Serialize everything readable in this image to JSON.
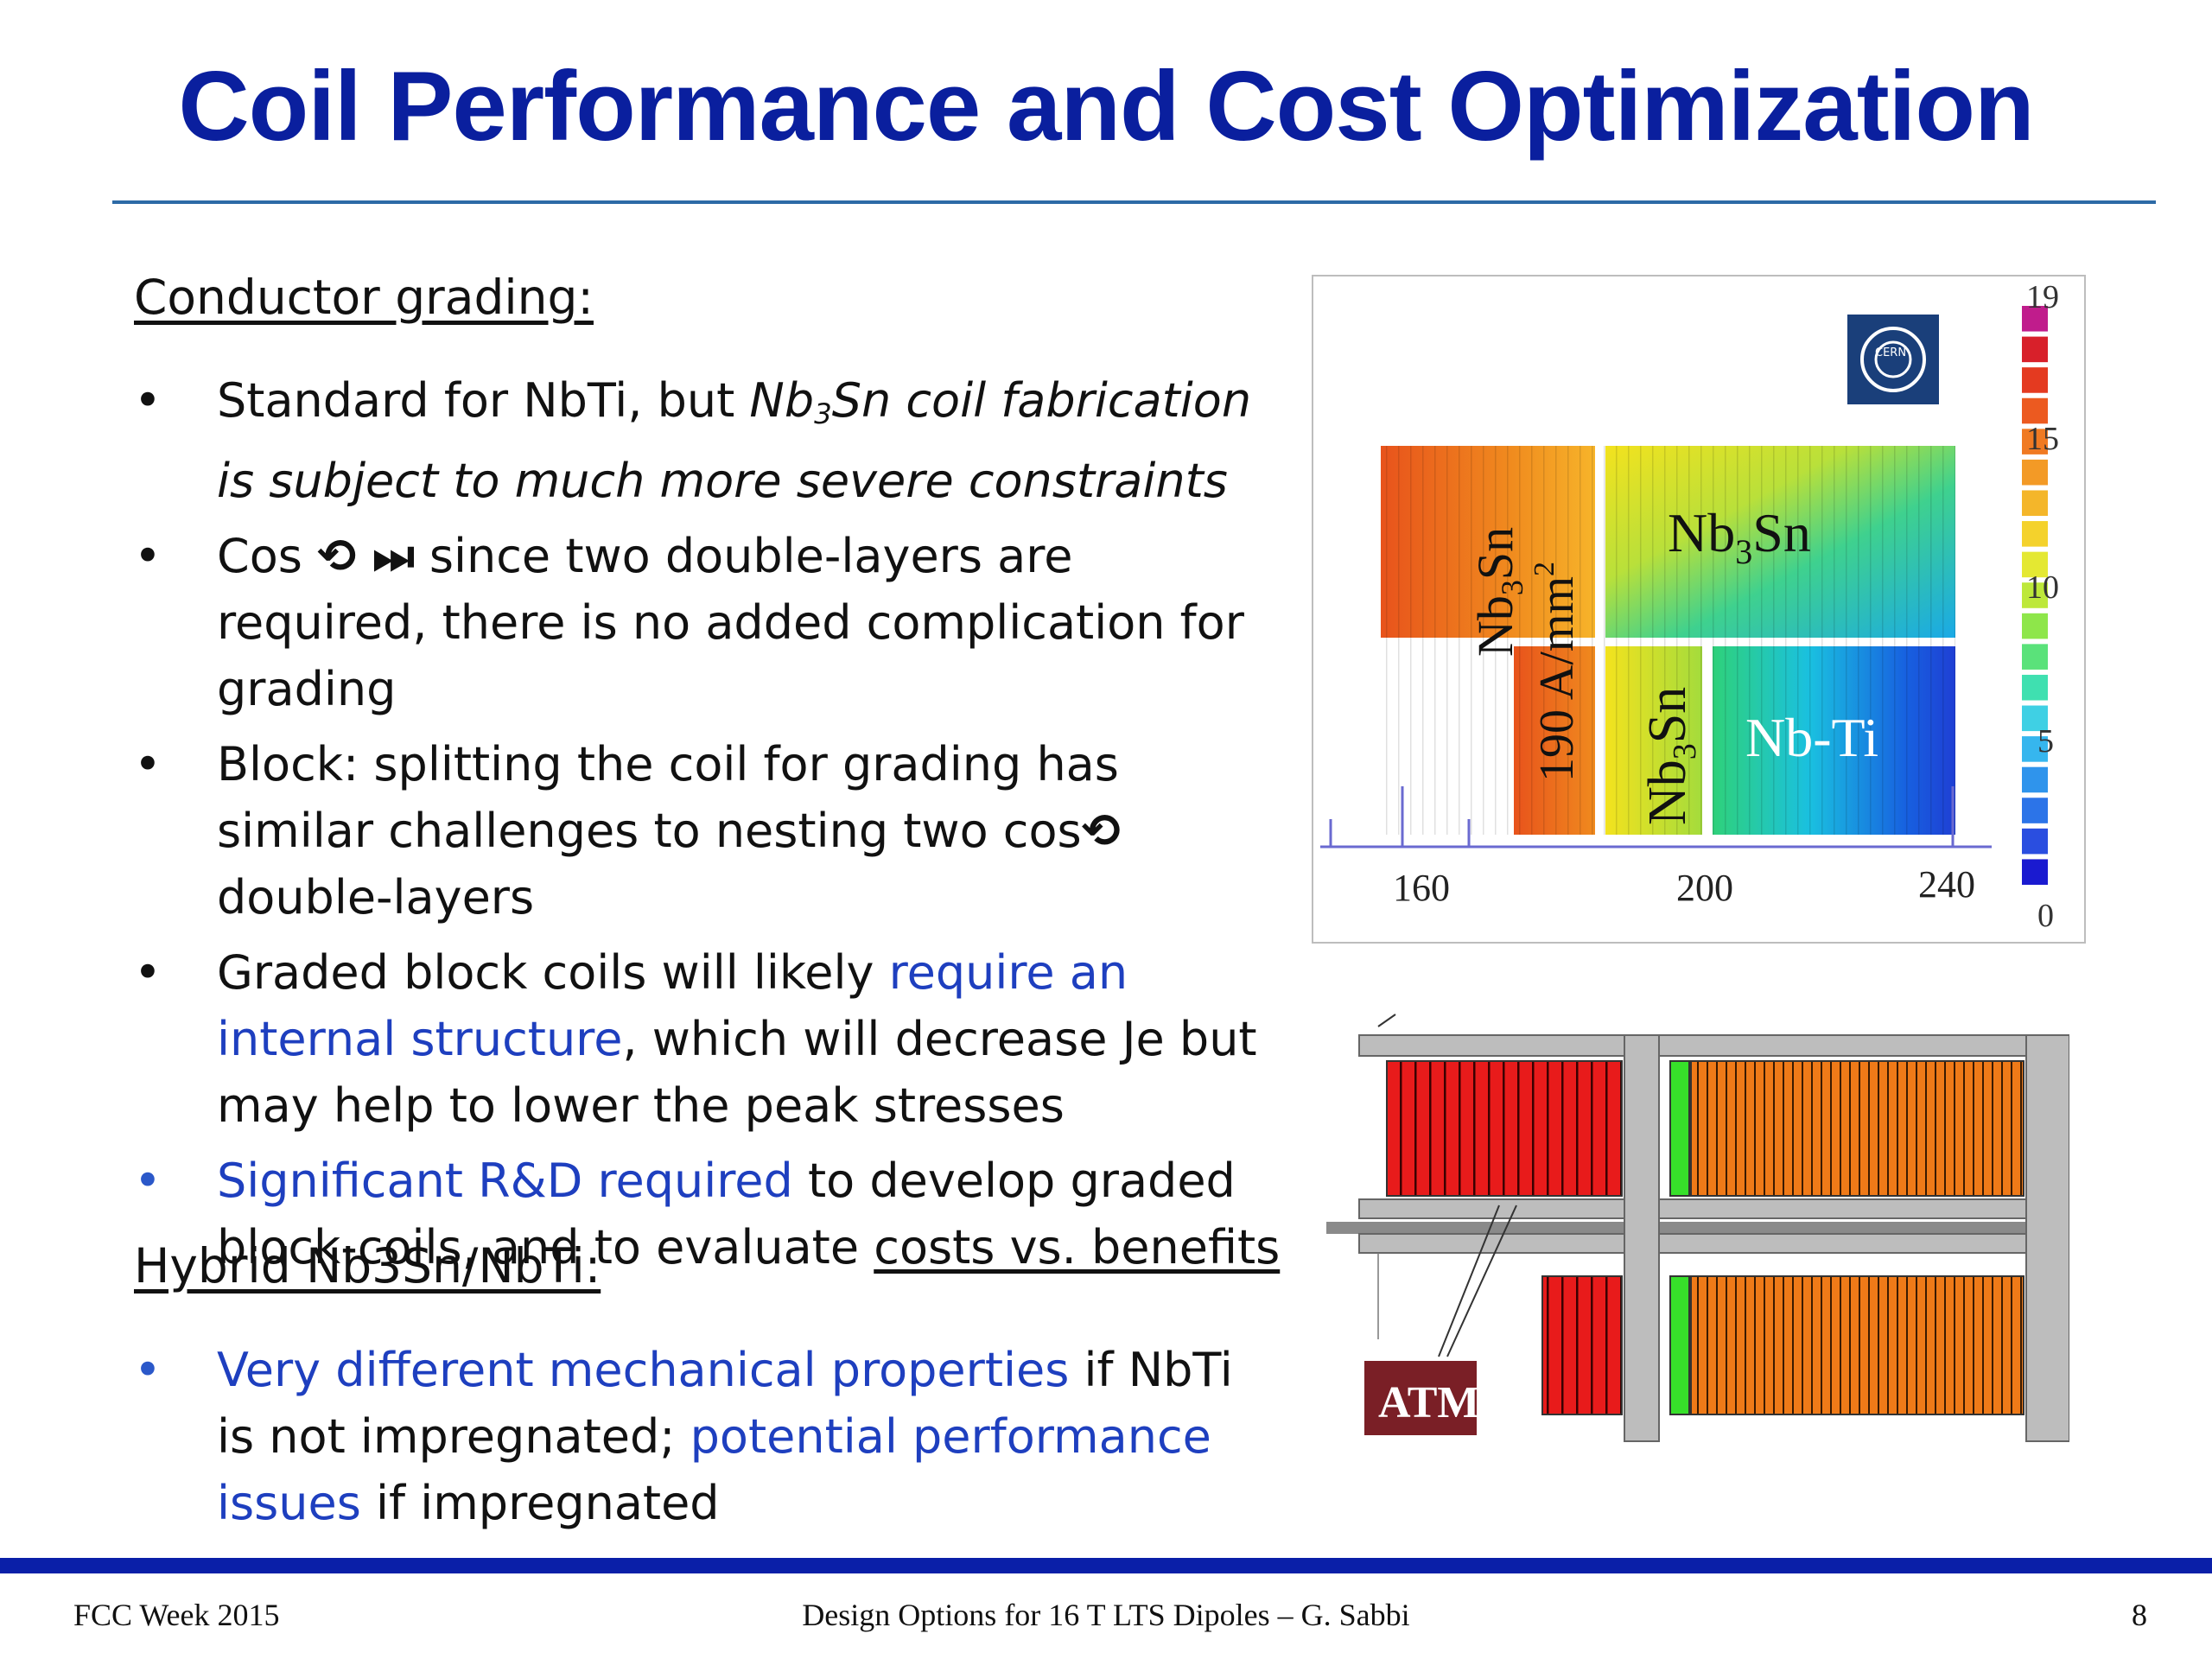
{
  "title": "Coil Performance and Cost Optimization",
  "sections": {
    "grading_heading": "Conductor grading:",
    "hybrid_heading": "Hybrid Nb3Sn/NbTi:"
  },
  "bullets": {
    "b1_pre": "Standard for NbTi, but ",
    "b1_nb": "Nb",
    "b1_sub": "3",
    "b1_ital": "Sn coil fabrication is subject to much more severe constraints",
    "b2_pre": "Cos",
    "b2_sym": "⟲ ⏭",
    "b2_post": " since two double-layers are required, there is no added complication for grading",
    "b3_pre": "Block: splitting the coil for grading has similar challenges to nesting two cos",
    "b3_sym": "⟲",
    "b3_post": " double-layers",
    "b4_pre": "Graded block coils will likely ",
    "b4_blue": "require an internal structure",
    "b4_post": ", which will decrease Je but may help to lower the peak stresses",
    "b5_blue": "Significant R&D required",
    "b5_mid": " to develop graded block-coils, and to evaluate ",
    "b5_u": "costs vs. benefits",
    "b6_blue1": "Very different mechanical properties",
    "b6_mid": " if NbTi is not impregnated; ",
    "b6_blue2": "potential performance issues",
    "b6_post": " if impregnated",
    "bullet_char": "•"
  },
  "figure1": {
    "labels": {
      "nb3sn_a": "Nb",
      "nb3sn_a_sub": "3",
      "nb3sn_a_end": "Sn",
      "current_density": "190 A/mm",
      "current_density_sup": "2",
      "nb3sn_top": "Nb",
      "nb3sn_top_sub": "3",
      "nb3sn_top_end": "Sn",
      "nb3sn_b": "Nb",
      "nb3sn_b_sub": "3",
      "nb3sn_b_end": "Sn",
      "nbti": "Nb-Ti"
    },
    "x_ticks": [
      "160",
      "200",
      "240"
    ],
    "colorbar_ticks": [
      "19",
      "15",
      "10",
      "5",
      "0"
    ],
    "cern_logo": "CERN"
  },
  "figure2": {
    "tamu_logo": "ATM"
  },
  "footer": {
    "left": "FCC Week 2015",
    "center": "Design Options for 16 T LTS Dipoles – G. Sabbi",
    "page": "8"
  }
}
